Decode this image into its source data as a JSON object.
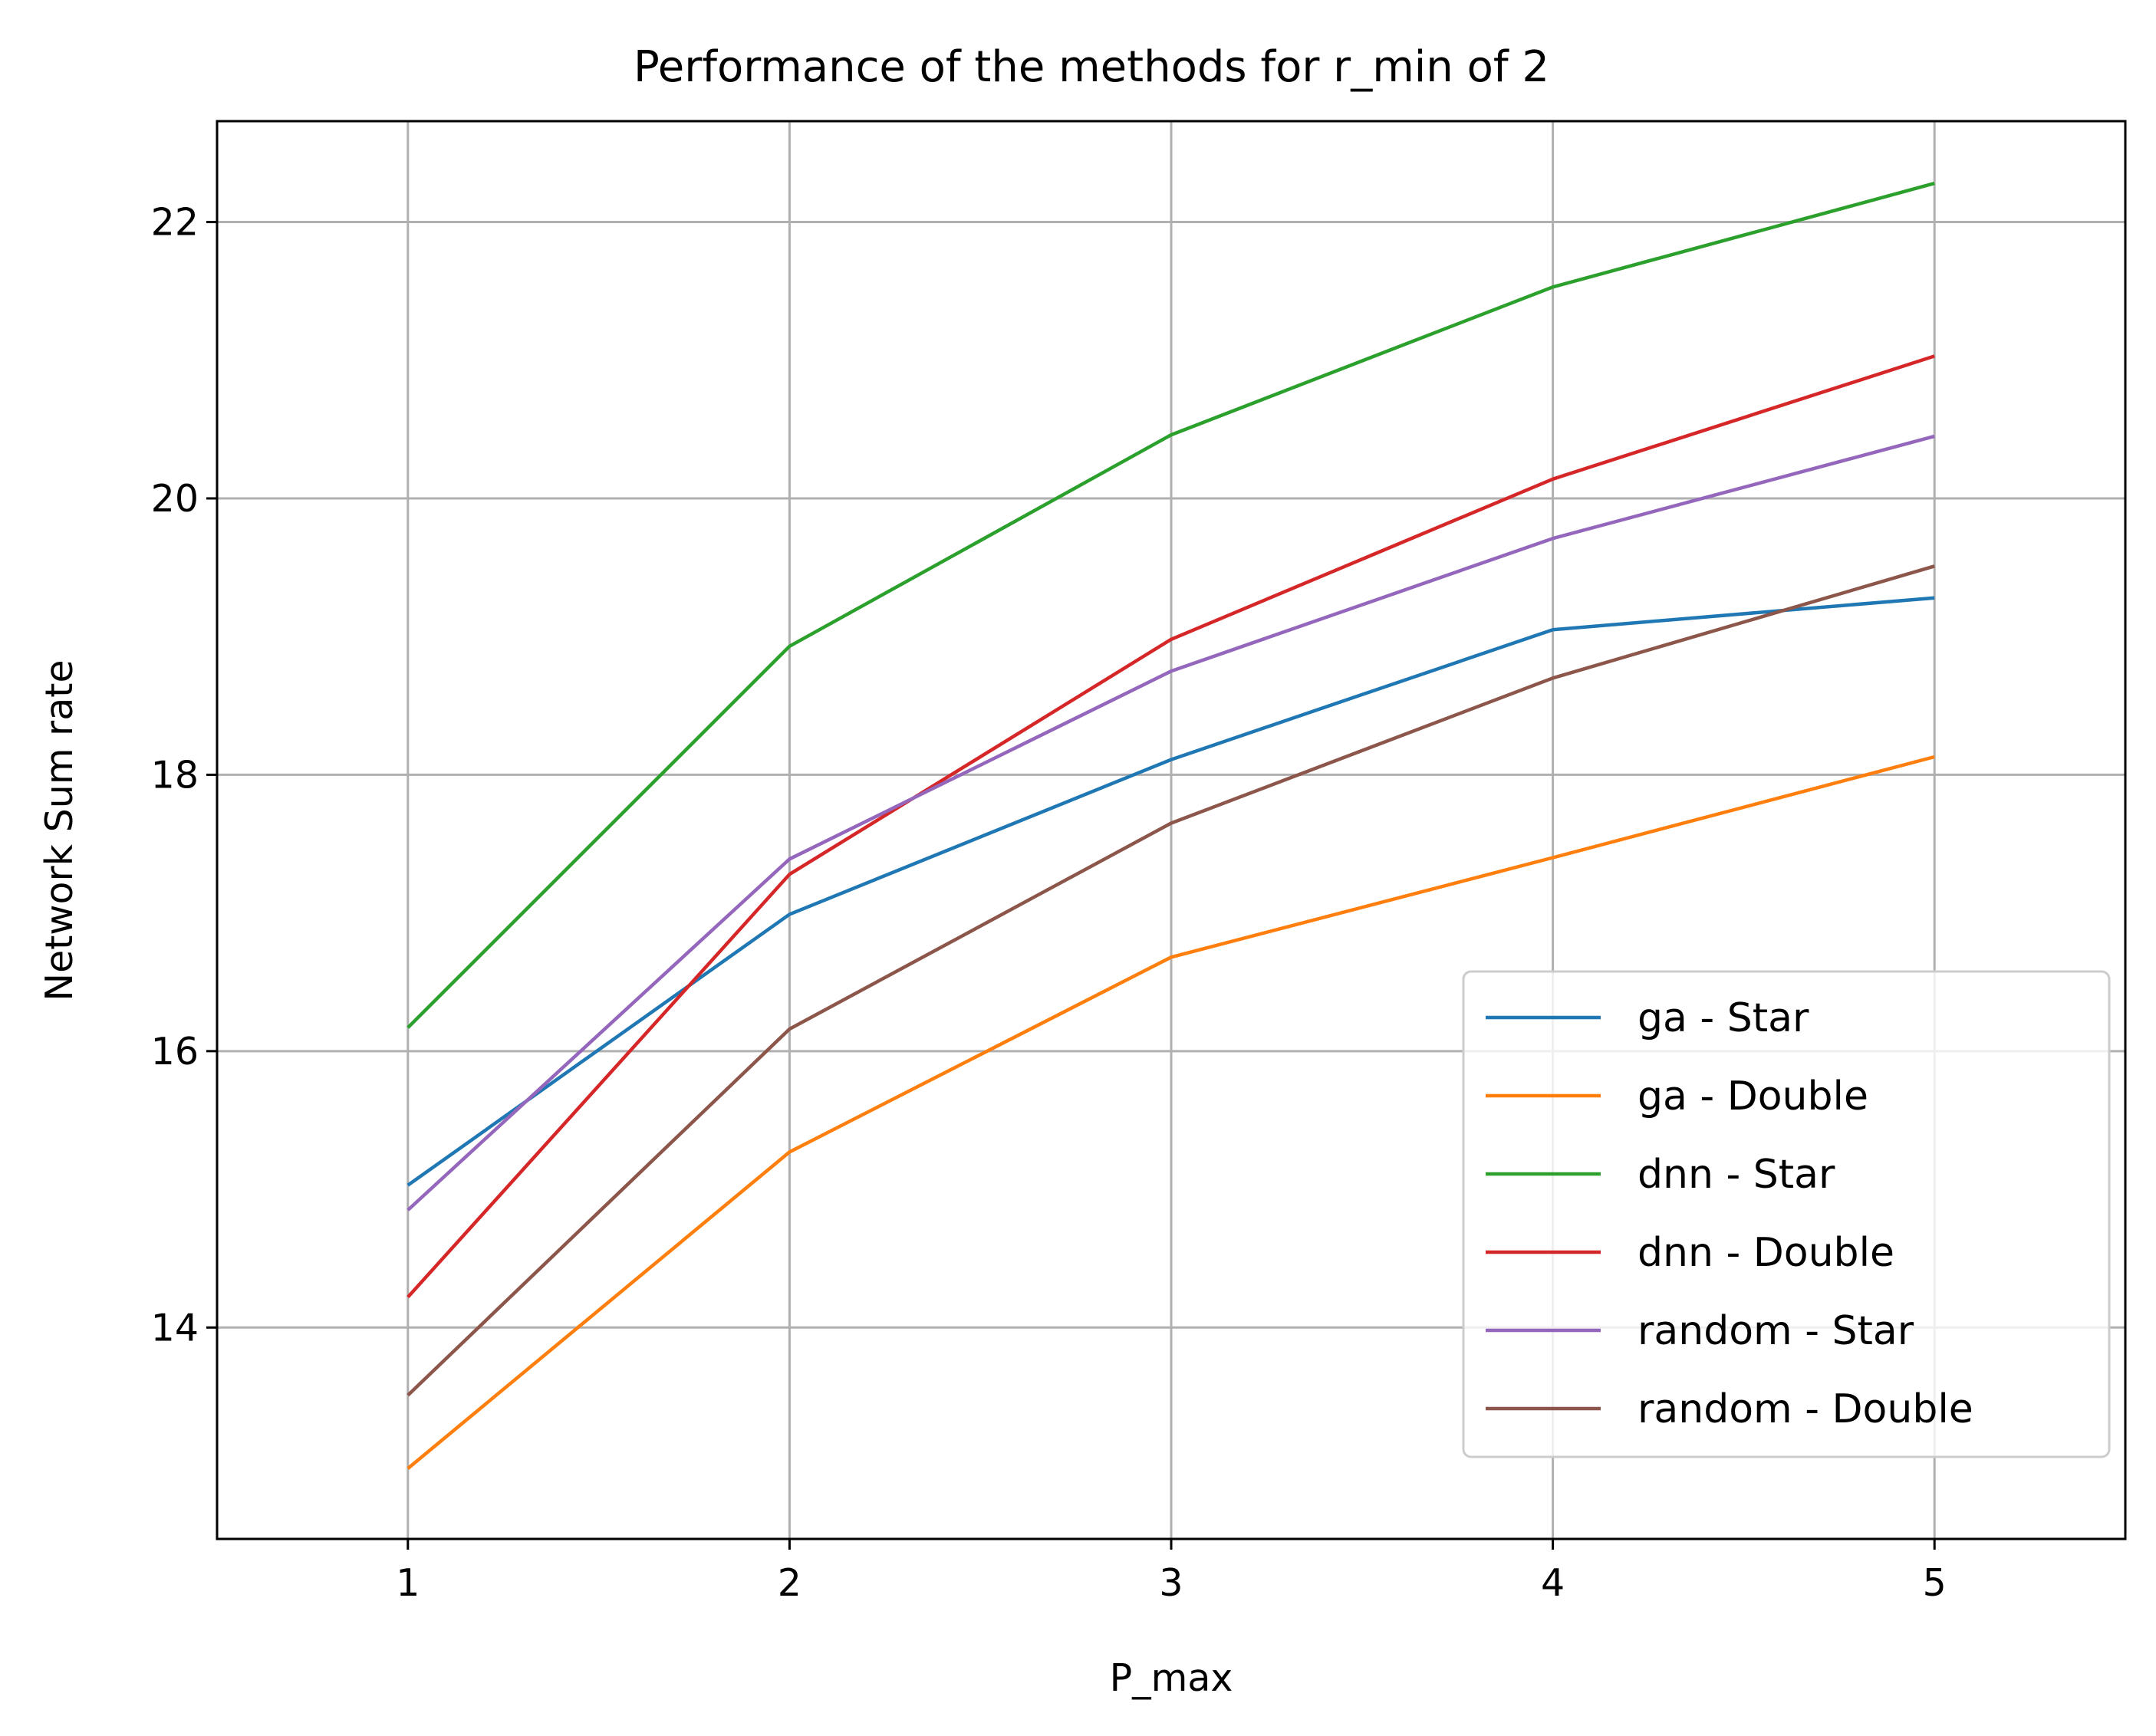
{
  "chart_data": {
    "type": "line",
    "title": "Performance of the methods for r_min of 2",
    "xlabel": "P_max",
    "ylabel": "Network Sum rate",
    "x": [
      1,
      2,
      3,
      4,
      5
    ],
    "xlim": [
      0.5,
      5.5
    ],
    "ylim": [
      12.47,
      22.73
    ],
    "xticks": [
      "1",
      "2",
      "3",
      "4",
      "5"
    ],
    "yticks": [
      "14",
      "16",
      "18",
      "20",
      "22"
    ],
    "grid": true,
    "legend_position": "lower right",
    "series": [
      {
        "name": "ga - Star",
        "color": "#1f77b4",
        "values": [
          15.03,
          16.99,
          18.11,
          19.05,
          19.28
        ]
      },
      {
        "name": "ga - Double",
        "color": "#ff7f0e",
        "values": [
          12.98,
          15.27,
          16.68,
          17.4,
          18.13
        ]
      },
      {
        "name": "dnn - Star",
        "color": "#2ca02c",
        "values": [
          16.17,
          18.93,
          20.46,
          21.53,
          22.28
        ]
      },
      {
        "name": "dnn - Double",
        "color": "#d62728",
        "values": [
          14.22,
          17.28,
          18.98,
          20.14,
          21.03
        ]
      },
      {
        "name": "random - Star",
        "color": "#9467bd",
        "values": [
          14.85,
          17.39,
          18.75,
          19.71,
          20.45
        ]
      },
      {
        "name": "random - Double",
        "color": "#8c564b",
        "values": [
          13.51,
          16.16,
          17.65,
          18.7,
          19.51
        ]
      }
    ]
  }
}
